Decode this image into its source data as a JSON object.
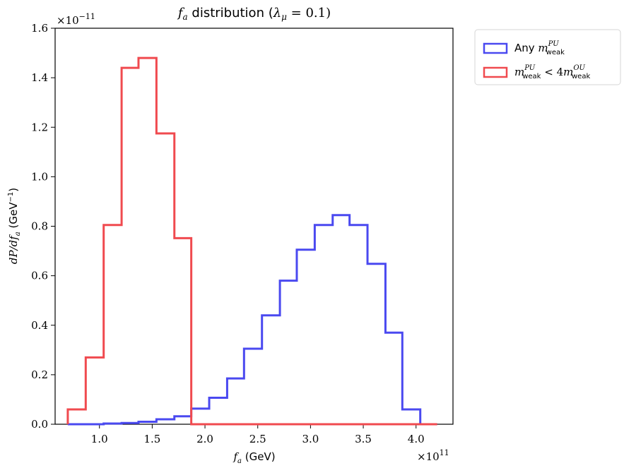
{
  "chart_data": {
    "type": "histogram",
    "title": "f_a distribution (λ_μ = 0.1)",
    "xlabel": "f_a (GeV)",
    "ylabel": "dP/df_a (GeV^-1)",
    "x_multiplier": "×10^11",
    "y_multiplier": "×10^-11",
    "xlim": [
      0.58,
      4.35
    ],
    "ylim": [
      0,
      1.6
    ],
    "x_ticks": [
      "1.0",
      "1.5",
      "2.0",
      "2.5",
      "3.0",
      "3.5",
      "4.0"
    ],
    "y_ticks": [
      "0.0",
      "0.2",
      "0.4",
      "0.6",
      "0.8",
      "1.0",
      "1.2",
      "1.4",
      "1.6"
    ],
    "grid": false,
    "legend_position": "outside-right",
    "series": [
      {
        "name": "Any m_weak^PU",
        "color": "#4a49f0",
        "bin_edges": [
          0.7,
          0.87,
          1.04,
          1.21,
          1.37,
          1.54,
          1.71,
          1.87,
          2.04,
          2.21,
          2.37,
          2.54,
          2.71,
          2.87,
          3.04,
          3.21,
          3.37,
          3.54,
          3.71,
          3.87,
          4.04,
          4.2
        ],
        "values": [
          0.0,
          0.0,
          0.003,
          0.005,
          0.01,
          0.02,
          0.032,
          0.063,
          0.107,
          0.185,
          0.305,
          0.44,
          0.58,
          0.705,
          0.805,
          0.845,
          0.805,
          0.648,
          0.37,
          0.06,
          0.0
        ]
      },
      {
        "name": "m_weak^PU < 4m_weak^OU",
        "color": "#f04a4f",
        "bin_edges": [
          0.7,
          0.87,
          1.04,
          1.21,
          1.37,
          1.54,
          1.71,
          1.87,
          2.04,
          2.21,
          2.37,
          2.54,
          2.71,
          2.87,
          3.04,
          3.21,
          3.37,
          3.54,
          3.71,
          3.87,
          4.04,
          4.2
        ],
        "values": [
          0.06,
          0.27,
          0.805,
          1.44,
          1.48,
          1.175,
          0.752,
          0.0,
          0.0,
          0.0,
          0.0,
          0.0,
          0.0,
          0.0,
          0.0,
          0.0,
          0.0,
          0.0,
          0.0,
          0.0,
          0.0
        ]
      }
    ]
  },
  "text": {
    "title_main": " distribution (",
    "title_fa": "f",
    "title_fa_sub": "a",
    "title_lambda": "λ",
    "title_mu": "μ",
    "title_eq": " = 0.1)",
    "xlabel_f": "f",
    "xlabel_sub": "a",
    "xlabel_unit": " (GeV)",
    "ylabel_main": "dP/df",
    "ylabel_sub": "a",
    "ylabel_unit": " (GeV",
    "ylabel_exp": "−1",
    "ylabel_close": ")",
    "x_mult_base": "×10",
    "x_mult_exp": "11",
    "y_mult_base": "×10",
    "y_mult_exp": "−11",
    "legend1_prefix": "Any ",
    "legend1_m": "m",
    "legend1_sub": "weak",
    "legend1_sup": "PU",
    "legend2_m1": "m",
    "legend2_sub1": "weak",
    "legend2_sup1": "PU",
    "legend2_mid": " < 4",
    "legend2_m2": "m",
    "legend2_sub2": "weak",
    "legend2_sup2": "OU"
  }
}
